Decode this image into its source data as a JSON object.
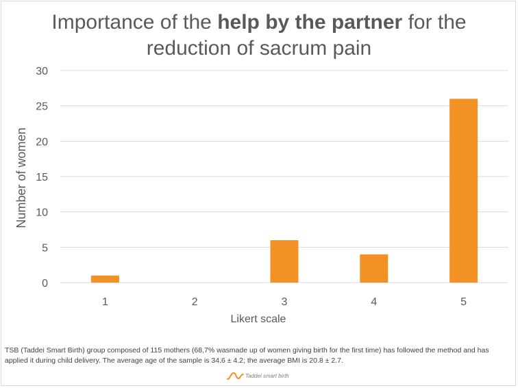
{
  "chart_data": {
    "type": "bar",
    "title_parts": [
      "Importance of the ",
      "help by the partner",
      " for the reduction of sacrum pain"
    ],
    "categories": [
      "1",
      "2",
      "3",
      "4",
      "5"
    ],
    "values": [
      1,
      0,
      6,
      4,
      26
    ],
    "xlabel": "Likert scale",
    "ylabel": "Number of women",
    "ylim": [
      0,
      30
    ],
    "yticks": [
      "0",
      "5",
      "10",
      "15",
      "20",
      "25",
      "30"
    ],
    "grid": true,
    "bar_color": "#f39224",
    "grid_color": "#d9d9d9"
  },
  "footnote": "TSB (Taddei Smart Birth) group composed of 115 mothers (68,7% wasmade up of women giving birth for the first time) has followed the method and has applied it during child delivery. The average age of the sample is 34.6 ± 4.2; the average BMI is 20.8 ± 2.7.",
  "logo": {
    "text": "Taddei smart birth",
    "icon": "wave-logo-icon",
    "color": "#f39224"
  }
}
